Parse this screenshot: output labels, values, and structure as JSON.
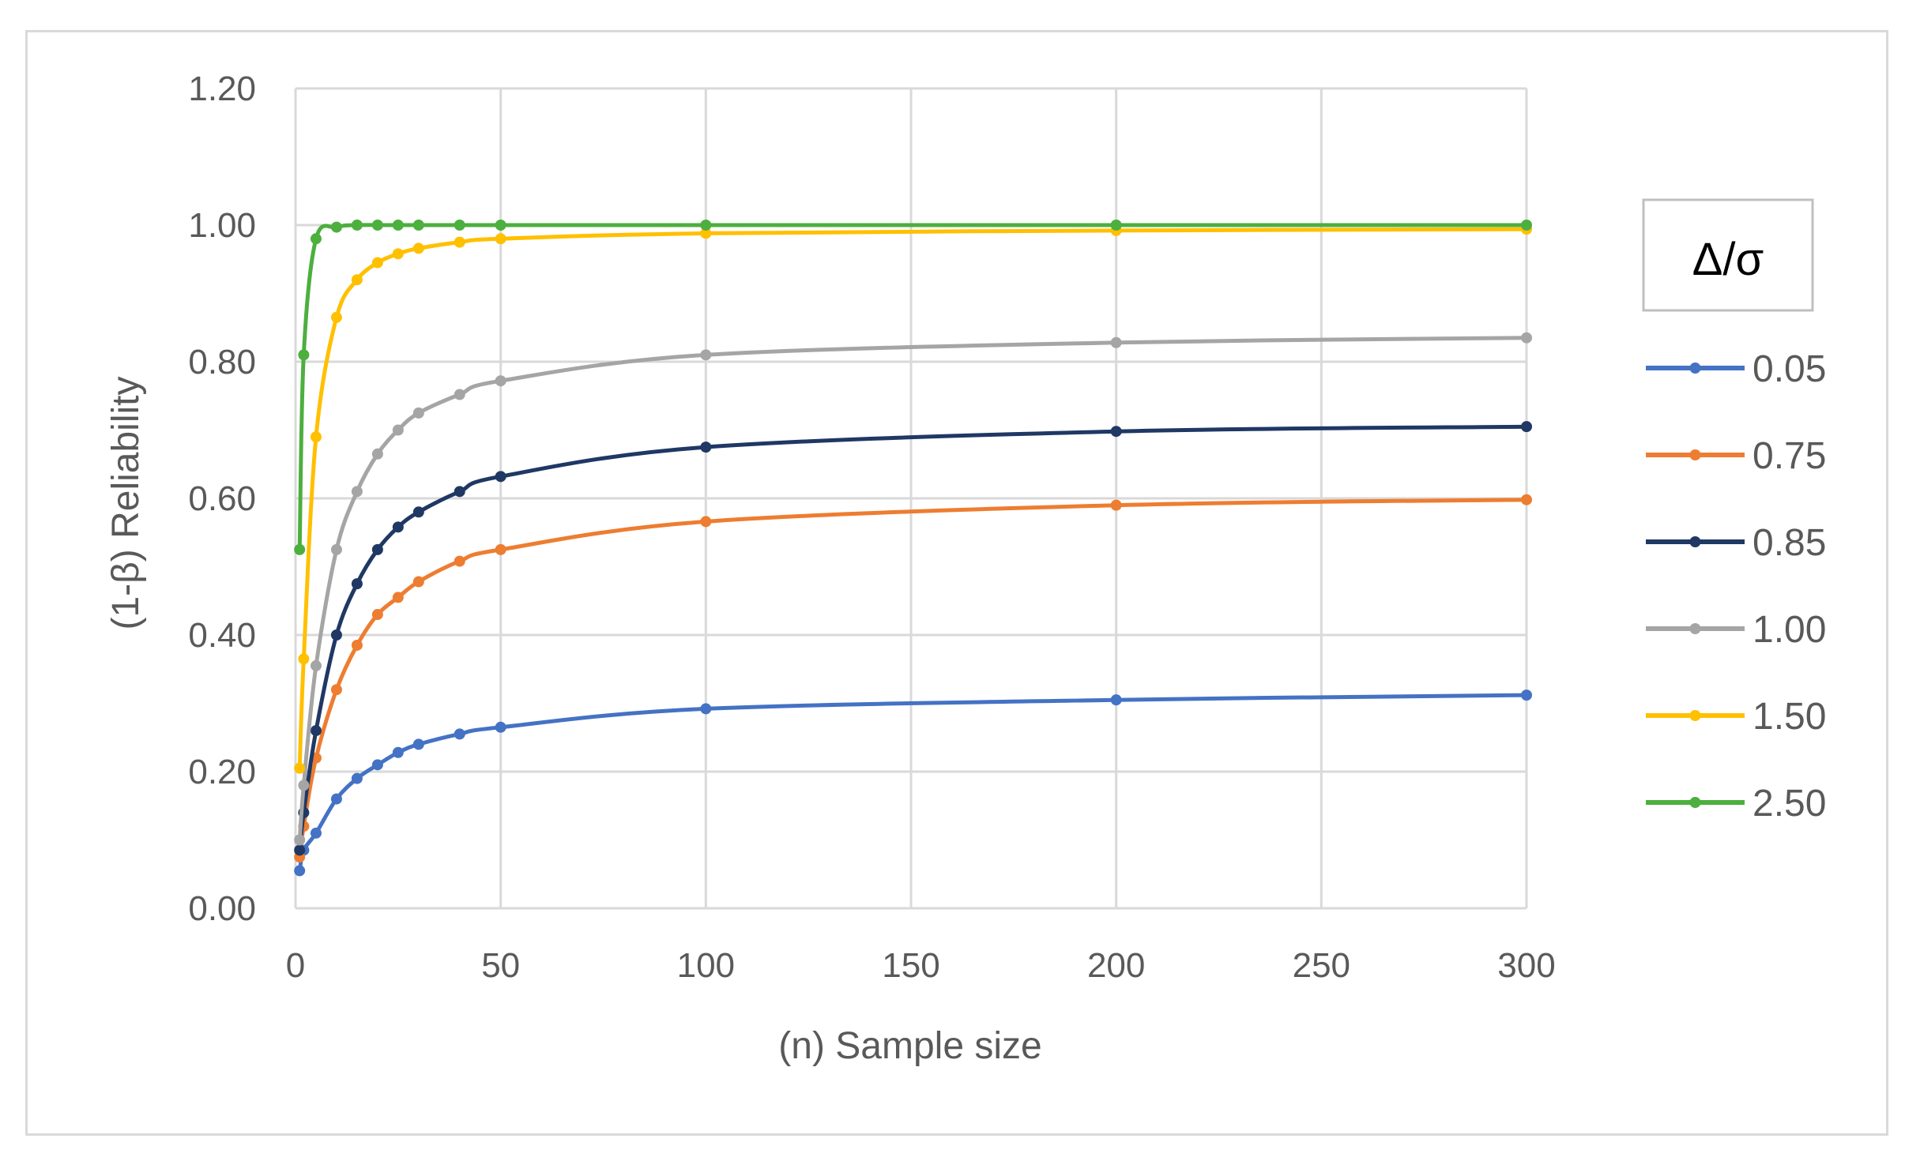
{
  "chart_data": {
    "type": "line",
    "title": "",
    "xlabel": "(n) Sample size",
    "ylabel": "(1-β) Reliability",
    "xlim": [
      0,
      300
    ],
    "ylim": [
      0,
      1.2
    ],
    "x_ticks": [
      0,
      50,
      100,
      150,
      200,
      250,
      300
    ],
    "x_tick_labels": [
      "0",
      "50",
      "100",
      "150",
      "200",
      "250",
      "300"
    ],
    "y_ticks": [
      0,
      0.2,
      0.4,
      0.6,
      0.8,
      1.0,
      1.2
    ],
    "y_tick_labels": [
      "0.00",
      "0.20",
      "0.40",
      "0.60",
      "0.80",
      "1.00",
      "1.20"
    ],
    "grid": true,
    "legend_title": "Δ/σ",
    "legend_position": "right",
    "x": [
      1,
      2,
      5,
      10,
      15,
      20,
      25,
      30,
      40,
      50,
      100,
      200,
      300
    ],
    "series": [
      {
        "name": "0.05",
        "color": "#4472c4",
        "values": [
          0.055,
          0.085,
          0.11,
          0.16,
          0.19,
          0.21,
          0.228,
          0.24,
          0.255,
          0.265,
          0.292,
          0.305,
          0.312
        ]
      },
      {
        "name": "0.75",
        "color": "#ed7d31",
        "values": [
          0.075,
          0.12,
          0.22,
          0.32,
          0.385,
          0.43,
          0.455,
          0.478,
          0.508,
          0.525,
          0.566,
          0.59,
          0.598
        ]
      },
      {
        "name": "0.85",
        "color": "#1f3864",
        "values": [
          0.085,
          0.14,
          0.26,
          0.4,
          0.475,
          0.525,
          0.558,
          0.58,
          0.61,
          0.632,
          0.675,
          0.698,
          0.705
        ]
      },
      {
        "name": "1.00",
        "color": "#a5a5a5",
        "values": [
          0.1,
          0.18,
          0.355,
          0.525,
          0.61,
          0.665,
          0.7,
          0.725,
          0.752,
          0.772,
          0.81,
          0.828,
          0.835
        ]
      },
      {
        "name": "1.50",
        "color": "#ffc000",
        "values": [
          0.205,
          0.365,
          0.69,
          0.865,
          0.92,
          0.945,
          0.958,
          0.966,
          0.975,
          0.98,
          0.988,
          0.992,
          0.994
        ]
      },
      {
        "name": "2.50",
        "color": "#4caf3e",
        "values": [
          0.525,
          0.81,
          0.98,
          0.997,
          1.0,
          1.0,
          1.0,
          1.0,
          1.0,
          1.0,
          1.0,
          1.0,
          1.0
        ]
      }
    ]
  }
}
